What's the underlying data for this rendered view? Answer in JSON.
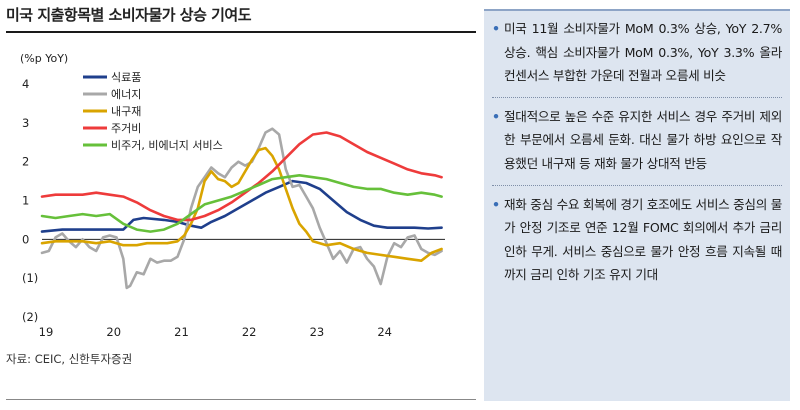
{
  "title": "미국 지출항목별 소비자물가 상승 기여도",
  "source": "자료: CEIC, 신한투자증권",
  "bullets": [
    "미국 11월 소비자물가 MoM 0.3% 상승, YoY 2.7% 상승. 핵심 소비자물가 MoM 0.3%, YoY 3.3% 올라 컨센서스 부합한 가운데 전월과 오름세 비슷",
    "절대적으로 높은 수준 유지한 서비스 경우 주거비 제외한 부문에서 오름세 둔화. 대신 물가 하방 요인으로 작용했던 내구재 등 재화 물가 상대적 반등",
    "재화 중심 수요 회복에 경기 호조에도 서비스 중심의 물가 안정 기조로 연준 12월 FOMC 회의에서 추가 금리 인하 무게. 서비스 중심으로 물가 안정 흐름 지속될 때까지 금리 인하 기조 유지 기대"
  ],
  "chart_data": {
    "type": "line",
    "ylabel": "(%p YoY)",
    "ylim": [
      -2,
      4
    ],
    "xlim": [
      2019.0,
      2024.95
    ],
    "y_ticks": [
      4,
      3,
      2,
      1,
      0,
      -1,
      -2
    ],
    "y_tick_labels": [
      "4",
      "3",
      "2",
      "1",
      "0",
      "(1)",
      "(2)"
    ],
    "x_ticks": [
      2019,
      2020,
      2021,
      2022,
      2023,
      2024
    ],
    "x_tick_labels": [
      "19",
      "20",
      "21",
      "22",
      "23",
      "24"
    ],
    "legend_position": "top-left",
    "grid": false,
    "series": [
      {
        "name": "식료품",
        "color": "#1f3f8c",
        "x": [
          2019.0,
          2019.3,
          2019.6,
          2019.9,
          2020.2,
          2020.35,
          2020.5,
          2020.8,
          2021.0,
          2021.2,
          2021.35,
          2021.5,
          2021.7,
          2021.9,
          2022.1,
          2022.3,
          2022.5,
          2022.7,
          2022.9,
          2023.1,
          2023.3,
          2023.5,
          2023.7,
          2023.9,
          2024.1,
          2024.3,
          2024.5,
          2024.7,
          2024.9
        ],
        "y": [
          0.2,
          0.25,
          0.25,
          0.25,
          0.25,
          0.5,
          0.55,
          0.5,
          0.45,
          0.35,
          0.3,
          0.45,
          0.6,
          0.8,
          1.0,
          1.2,
          1.35,
          1.5,
          1.45,
          1.3,
          1.0,
          0.7,
          0.5,
          0.35,
          0.3,
          0.3,
          0.3,
          0.28,
          0.3
        ]
      },
      {
        "name": "에너지",
        "color": "#a8a8a8",
        "x": [
          2019.0,
          2019.1,
          2019.2,
          2019.3,
          2019.4,
          2019.5,
          2019.6,
          2019.7,
          2019.8,
          2019.9,
          2020.0,
          2020.1,
          2020.2,
          2020.25,
          2020.3,
          2020.4,
          2020.5,
          2020.6,
          2020.7,
          2020.8,
          2020.9,
          2021.0,
          2021.1,
          2021.2,
          2021.3,
          2021.4,
          2021.5,
          2021.6,
          2021.7,
          2021.8,
          2021.9,
          2022.0,
          2022.1,
          2022.2,
          2022.3,
          2022.4,
          2022.5,
          2022.6,
          2022.7,
          2022.8,
          2022.9,
          2023.0,
          2023.1,
          2023.2,
          2023.3,
          2023.4,
          2023.5,
          2023.6,
          2023.7,
          2023.8,
          2023.9,
          2024.0,
          2024.1,
          2024.2,
          2024.3,
          2024.4,
          2024.5,
          2024.6,
          2024.7,
          2024.8,
          2024.9
        ],
        "y": [
          -0.35,
          -0.3,
          0.05,
          0.15,
          -0.05,
          -0.2,
          0.0,
          -0.2,
          -0.3,
          0.05,
          0.1,
          0.05,
          -0.5,
          -1.25,
          -1.2,
          -0.85,
          -0.9,
          -0.5,
          -0.6,
          -0.55,
          -0.55,
          -0.45,
          0.0,
          0.8,
          1.35,
          1.6,
          1.85,
          1.7,
          1.6,
          1.85,
          2.0,
          1.9,
          2.0,
          2.35,
          2.75,
          2.85,
          2.7,
          1.8,
          1.35,
          1.4,
          1.1,
          0.8,
          0.3,
          -0.1,
          -0.5,
          -0.3,
          -0.6,
          -0.25,
          -0.2,
          -0.5,
          -0.7,
          -1.15,
          -0.45,
          -0.1,
          -0.2,
          0.05,
          0.1,
          -0.25,
          -0.35,
          -0.4,
          -0.3
        ]
      },
      {
        "name": "내구재",
        "color": "#d9a400",
        "x": [
          2019.0,
          2019.2,
          2019.4,
          2019.6,
          2019.8,
          2020.0,
          2020.2,
          2020.4,
          2020.55,
          2020.7,
          2020.85,
          2021.0,
          2021.1,
          2021.2,
          2021.3,
          2021.4,
          2021.5,
          2021.6,
          2021.7,
          2021.8,
          2021.9,
          2022.0,
          2022.1,
          2022.2,
          2022.3,
          2022.4,
          2022.5,
          2022.6,
          2022.7,
          2022.8,
          2022.9,
          2023.0,
          2023.2,
          2023.4,
          2023.6,
          2023.8,
          2024.0,
          2024.2,
          2024.4,
          2024.6,
          2024.75,
          2024.9
        ],
        "y": [
          -0.1,
          -0.05,
          -0.05,
          -0.05,
          -0.1,
          -0.05,
          -0.15,
          -0.15,
          -0.1,
          -0.1,
          -0.1,
          -0.05,
          0.1,
          0.4,
          0.8,
          1.5,
          1.75,
          1.55,
          1.5,
          1.35,
          1.45,
          1.75,
          2.05,
          2.3,
          2.35,
          2.15,
          1.8,
          1.3,
          0.8,
          0.4,
          0.2,
          -0.05,
          -0.15,
          -0.1,
          -0.25,
          -0.35,
          -0.4,
          -0.45,
          -0.5,
          -0.55,
          -0.35,
          -0.25
        ]
      },
      {
        "name": "주거비",
        "color": "#ee3b3b",
        "x": [
          2019.0,
          2019.2,
          2019.4,
          2019.6,
          2019.8,
          2020.0,
          2020.2,
          2020.4,
          2020.6,
          2020.8,
          2021.0,
          2021.2,
          2021.4,
          2021.6,
          2021.8,
          2022.0,
          2022.2,
          2022.4,
          2022.6,
          2022.8,
          2023.0,
          2023.2,
          2023.4,
          2023.6,
          2023.8,
          2024.0,
          2024.2,
          2024.4,
          2024.6,
          2024.8,
          2024.9
        ],
        "y": [
          1.1,
          1.15,
          1.15,
          1.15,
          1.2,
          1.15,
          1.1,
          0.95,
          0.75,
          0.6,
          0.5,
          0.5,
          0.6,
          0.75,
          0.95,
          1.2,
          1.45,
          1.75,
          2.1,
          2.45,
          2.7,
          2.75,
          2.65,
          2.45,
          2.25,
          2.1,
          1.95,
          1.8,
          1.7,
          1.65,
          1.6
        ]
      },
      {
        "name": "비주거, 비에너지 서비스",
        "color": "#66c03a",
        "x": [
          2019.0,
          2019.2,
          2019.4,
          2019.6,
          2019.8,
          2020.0,
          2020.2,
          2020.4,
          2020.6,
          2020.8,
          2021.0,
          2021.2,
          2021.4,
          2021.6,
          2021.8,
          2022.0,
          2022.2,
          2022.4,
          2022.6,
          2022.8,
          2023.0,
          2023.2,
          2023.4,
          2023.6,
          2023.8,
          2024.0,
          2024.2,
          2024.4,
          2024.6,
          2024.8,
          2024.9
        ],
        "y": [
          0.6,
          0.55,
          0.6,
          0.65,
          0.6,
          0.65,
          0.4,
          0.25,
          0.2,
          0.25,
          0.4,
          0.65,
          0.9,
          1.0,
          1.1,
          1.25,
          1.4,
          1.55,
          1.6,
          1.65,
          1.6,
          1.55,
          1.45,
          1.35,
          1.3,
          1.3,
          1.2,
          1.15,
          1.2,
          1.15,
          1.1
        ]
      }
    ]
  }
}
